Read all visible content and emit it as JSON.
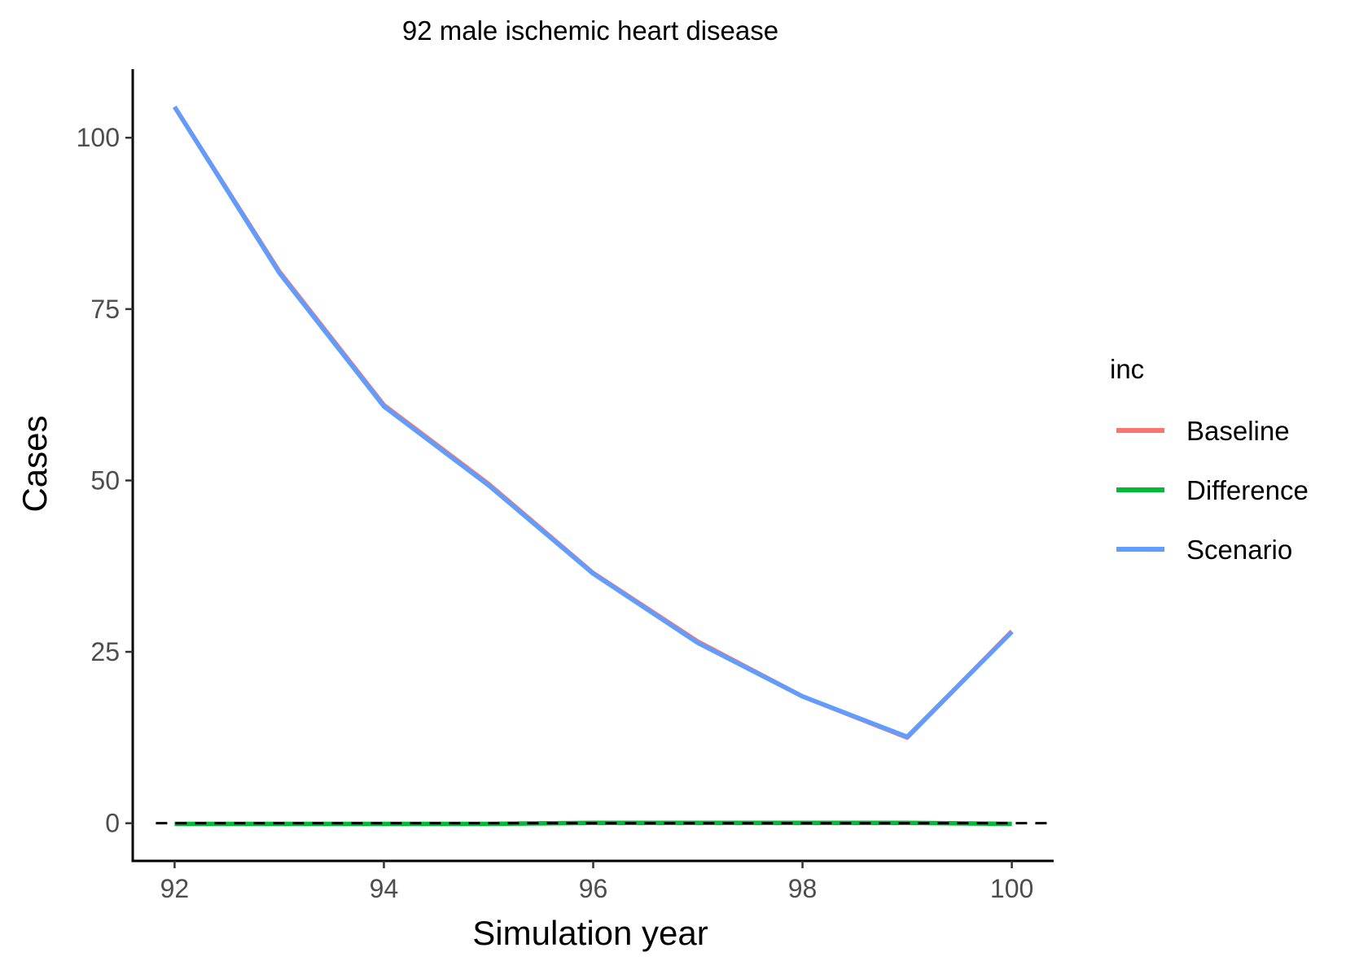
{
  "chart_data": {
    "type": "line",
    "title": "92 male ischemic heart disease",
    "xlabel": "Simulation year",
    "ylabel": "Cases",
    "xlim": [
      91.6,
      100.4
    ],
    "ylim": [
      -5.5,
      110
    ],
    "x_ticks": [
      92,
      94,
      96,
      98,
      100
    ],
    "y_ticks": [
      0,
      25,
      50,
      75,
      100
    ],
    "x_tick_labels": [
      "92",
      "94",
      "96",
      "98",
      "100"
    ],
    "y_tick_labels": [
      "0",
      "25",
      "50",
      "75",
      "100"
    ],
    "reference_line": {
      "y": 0,
      "style": "dashed",
      "color": "#000000"
    },
    "grid": false,
    "legend": {
      "title": "inc",
      "position": "right"
    },
    "x": [
      92,
      93,
      94,
      95,
      96,
      97,
      98,
      99,
      100
    ],
    "series": [
      {
        "name": "Baseline",
        "color": "#F8766D",
        "values": [
          104.5,
          80.5,
          61.0,
          49.5,
          36.5,
          26.5,
          18.5,
          12.5,
          28.0
        ]
      },
      {
        "name": "Difference",
        "color": "#00BA38",
        "values": [
          -0.1,
          -0.1,
          -0.1,
          -0.1,
          0.05,
          0.05,
          0.05,
          0.05,
          -0.1
        ]
      },
      {
        "name": "Scenario",
        "color": "#619CFF",
        "values": [
          104.5,
          80.3,
          60.8,
          49.3,
          36.4,
          26.3,
          18.5,
          12.6,
          27.9
        ]
      }
    ]
  }
}
